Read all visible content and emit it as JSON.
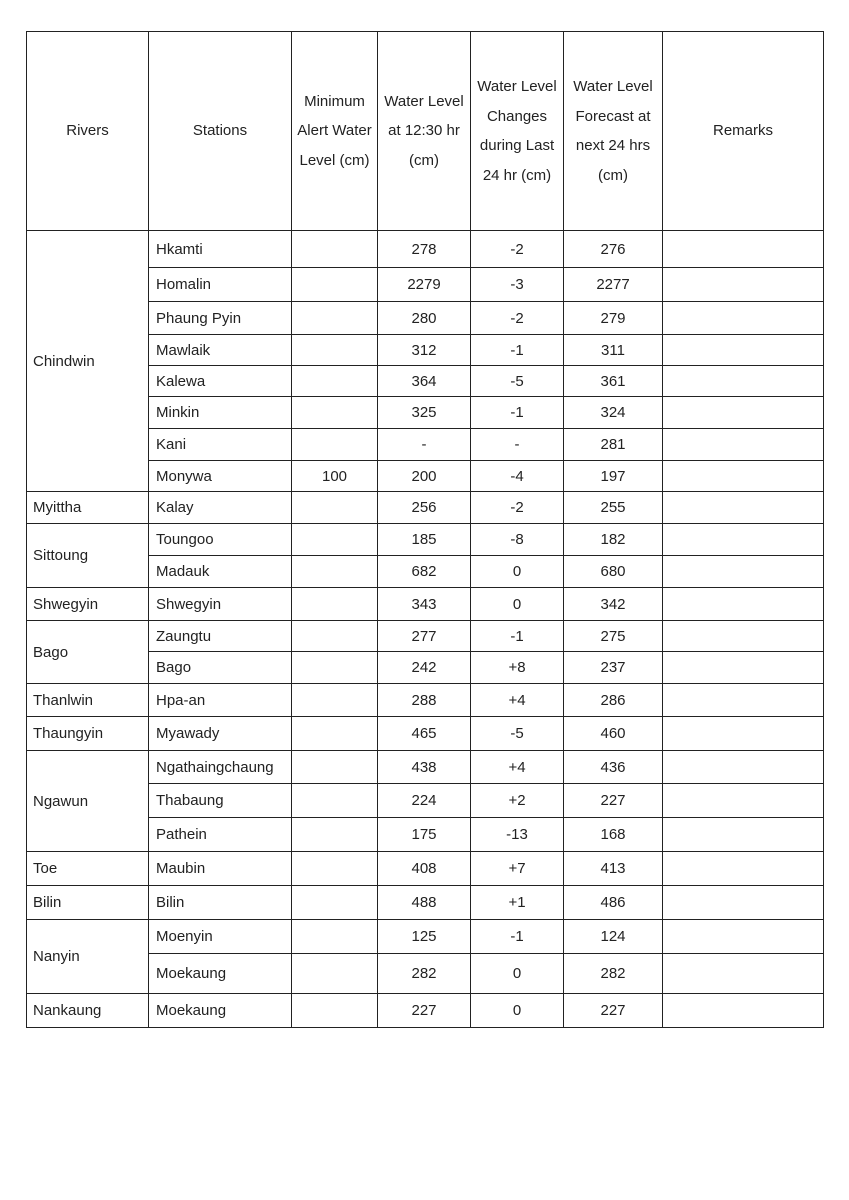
{
  "table": {
    "headers": {
      "river": "Rivers",
      "station": "Stations",
      "alert": "Minimum Alert Water Level (cm)",
      "level": "Water Level at 12:30 hr (cm)",
      "change": "Water Level Changes during Last 24 hr (cm)",
      "forecast": "Water Level Forecast at next 24 hrs (cm)",
      "remarks": "Remarks"
    },
    "groups": [
      {
        "river": "Chindwin",
        "rows": [
          {
            "station": "Hkamti",
            "alert": "",
            "level": "278",
            "change": "-2",
            "forecast": "276",
            "remarks": ""
          },
          {
            "station": "Homalin",
            "alert": "",
            "level": "2279",
            "change": "-3",
            "forecast": "2277",
            "remarks": ""
          },
          {
            "station": "Phaung Pyin",
            "alert": "",
            "level": "280",
            "change": "-2",
            "forecast": "279",
            "remarks": ""
          },
          {
            "station": "Mawlaik",
            "alert": "",
            "level": "312",
            "change": "-1",
            "forecast": "311",
            "remarks": ""
          },
          {
            "station": "Kalewa",
            "alert": "",
            "level": "364",
            "change": "-5",
            "forecast": "361",
            "remarks": ""
          },
          {
            "station": "Minkin",
            "alert": "",
            "level": "325",
            "change": "-1",
            "forecast": "324",
            "remarks": ""
          },
          {
            "station": "Kani",
            "alert": "",
            "level": "-",
            "change": "-",
            "forecast": "281",
            "remarks": ""
          },
          {
            "station": "Monywa",
            "alert": "100",
            "level": "200",
            "change": "-4",
            "forecast": "197",
            "remarks": ""
          }
        ]
      },
      {
        "river": "Myittha",
        "rows": [
          {
            "station": "Kalay",
            "alert": "",
            "level": "256",
            "change": "-2",
            "forecast": "255",
            "remarks": ""
          }
        ]
      },
      {
        "river": "Sittoung",
        "rows": [
          {
            "station": "Toungoo",
            "alert": "",
            "level": "185",
            "change": "-8",
            "forecast": "182",
            "remarks": ""
          },
          {
            "station": "Madauk",
            "alert": "",
            "level": "682",
            "change": "0",
            "forecast": "680",
            "remarks": ""
          }
        ]
      },
      {
        "river": "Shwegyin",
        "rows": [
          {
            "station": "Shwegyin",
            "alert": "",
            "level": "343",
            "change": "0",
            "forecast": "342",
            "remarks": ""
          }
        ]
      },
      {
        "river": "Bago",
        "rows": [
          {
            "station": "Zaungtu",
            "alert": "",
            "level": "277",
            "change": "-1",
            "forecast": "275",
            "remarks": ""
          },
          {
            "station": "Bago",
            "alert": "",
            "level": "242",
            "change": "+8",
            "forecast": "237",
            "remarks": ""
          }
        ]
      },
      {
        "river": "Thanlwin",
        "rows": [
          {
            "station": "Hpa-an",
            "alert": "",
            "level": "288",
            "change": "+4",
            "forecast": "286",
            "remarks": ""
          }
        ]
      },
      {
        "river": "Thaungyin",
        "rows": [
          {
            "station": "Myawady",
            "alert": "",
            "level": "465",
            "change": "-5",
            "forecast": "460",
            "remarks": ""
          }
        ]
      },
      {
        "river": "Ngawun",
        "rows": [
          {
            "station": "Ngathaingchaung",
            "alert": "",
            "level": "438",
            "change": "+4",
            "forecast": "436",
            "remarks": ""
          },
          {
            "station": "Thabaung",
            "alert": "",
            "level": "224",
            "change": "+2",
            "forecast": "227",
            "remarks": ""
          },
          {
            "station": "Pathein",
            "alert": "",
            "level": "175",
            "change": "-13",
            "forecast": "168",
            "remarks": ""
          }
        ]
      },
      {
        "river": "Toe",
        "rows": [
          {
            "station": "Maubin",
            "alert": "",
            "level": "408",
            "change": "+7",
            "forecast": "413",
            "remarks": ""
          }
        ]
      },
      {
        "river": "Bilin",
        "rows": [
          {
            "station": "Bilin",
            "alert": "",
            "level": "488",
            "change": "+1",
            "forecast": "486",
            "remarks": ""
          }
        ]
      },
      {
        "river": "Nanyin",
        "rows": [
          {
            "station": "Moenyin",
            "alert": "",
            "level": "125",
            "change": "-1",
            "forecast": "124",
            "remarks": ""
          },
          {
            "station": "Moekaung",
            "alert": "",
            "level": "282",
            "change": "0",
            "forecast": "282",
            "remarks": ""
          }
        ]
      },
      {
        "river": "Nankaung",
        "rows": [
          {
            "station": "Moekaung",
            "alert": "",
            "level": "227",
            "change": "0",
            "forecast": "227",
            "remarks": ""
          }
        ]
      }
    ]
  }
}
